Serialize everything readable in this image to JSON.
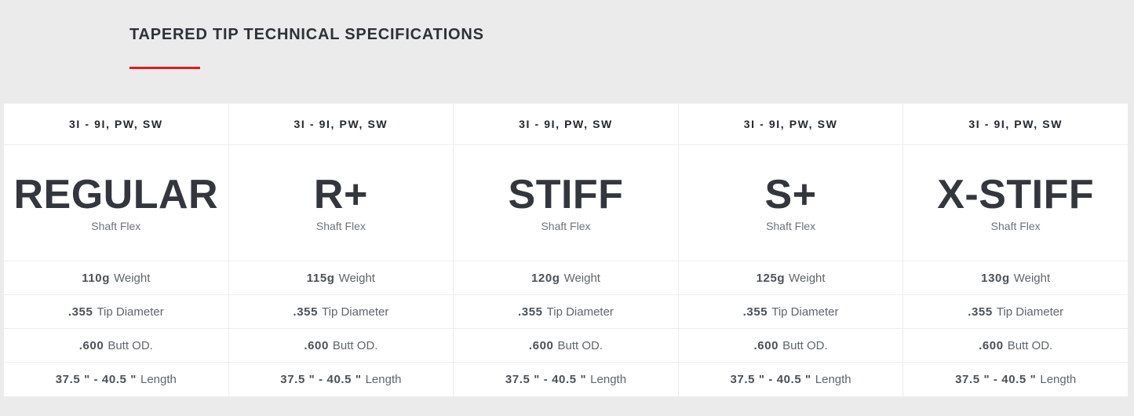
{
  "page": {
    "background_color": "#ebebeb",
    "accent_red": "#e01a22"
  },
  "header": {
    "title": "TAPERED TIP TECHNICAL SPECIFICATIONS"
  },
  "table": {
    "columns": [
      {
        "irons": "3I - 9I, PW, SW",
        "flex_name": "REGULAR",
        "flex_label": "Shaft Flex",
        "specs": [
          {
            "value": "110g",
            "label": "Weight"
          },
          {
            "value": ".355",
            "label": "Tip Diameter"
          },
          {
            "value": ".600",
            "label": "Butt OD."
          },
          {
            "value": "37.5 \" - 40.5 \"",
            "label": "Length"
          }
        ]
      },
      {
        "irons": "3I - 9I, PW, SW",
        "flex_name": "R+",
        "flex_label": "Shaft Flex",
        "specs": [
          {
            "value": "115g",
            "label": "Weight"
          },
          {
            "value": ".355",
            "label": "Tip Diameter"
          },
          {
            "value": ".600",
            "label": "Butt OD."
          },
          {
            "value": "37.5 \" - 40.5 \"",
            "label": "Length"
          }
        ]
      },
      {
        "irons": "3I - 9I, PW, SW",
        "flex_name": "STIFF",
        "flex_label": "Shaft Flex",
        "specs": [
          {
            "value": "120g",
            "label": "Weight"
          },
          {
            "value": ".355",
            "label": "Tip Diameter"
          },
          {
            "value": ".600",
            "label": "Butt OD."
          },
          {
            "value": "37.5 \" - 40.5 \"",
            "label": "Length"
          }
        ]
      },
      {
        "irons": "3I - 9I, PW, SW",
        "flex_name": "S+",
        "flex_label": "Shaft Flex",
        "specs": [
          {
            "value": "125g",
            "label": "Weight"
          },
          {
            "value": ".355",
            "label": "Tip Diameter"
          },
          {
            "value": ".600",
            "label": "Butt OD."
          },
          {
            "value": "37.5 \" - 40.5 \"",
            "label": "Length"
          }
        ]
      },
      {
        "irons": "3I - 9I, PW, SW",
        "flex_name": "X-STIFF",
        "flex_label": "Shaft Flex",
        "specs": [
          {
            "value": "130g",
            "label": "Weight"
          },
          {
            "value": ".355",
            "label": "Tip Diameter"
          },
          {
            "value": ".600",
            "label": "Butt OD."
          },
          {
            "value": "37.5 \" - 40.5 \"",
            "label": "Length"
          }
        ]
      }
    ]
  }
}
